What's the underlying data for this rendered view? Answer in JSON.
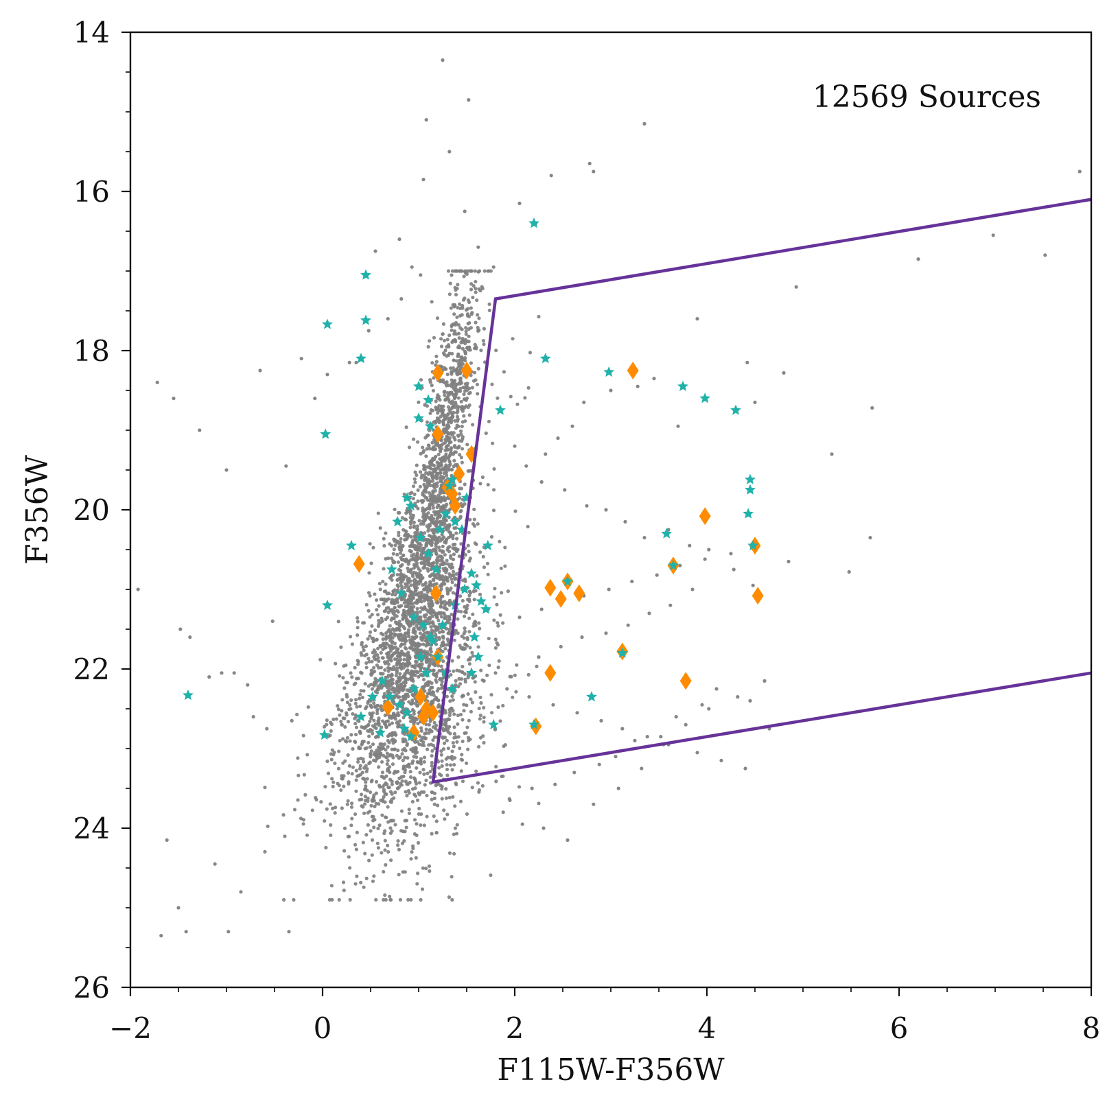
{
  "chart_data": {
    "type": "scatter",
    "title": "",
    "xlabel": "F115W-F356W",
    "ylabel": "F356W",
    "xlim": [
      -2,
      8
    ],
    "ylim": [
      26,
      14
    ],
    "y_inverted": true,
    "grid": false,
    "xticks": [
      -2,
      0,
      2,
      4,
      6,
      8
    ],
    "xtick_labels": [
      "−2",
      "0",
      "2",
      "4",
      "6",
      "8"
    ],
    "yticks": [
      14,
      16,
      18,
      20,
      22,
      24,
      26
    ],
    "ytick_labels": [
      "14",
      "16",
      "18",
      "20",
      "22",
      "24",
      "26"
    ],
    "annotation": {
      "text": "12569 Sources",
      "position": "top-right"
    },
    "colors": {
      "background_sources": "#808080",
      "star_sources": "#20b2aa",
      "diamond_sources": "#ff8c00",
      "selection_box": "#663399"
    },
    "series": [
      {
        "name": "background-sources",
        "marker": "dot",
        "color": "#808080",
        "generated_cloud": {
          "count": 3800,
          "description": "dense main branch plus broad cloud; plotted from sampled locus",
          "locus": [
            [
              0.6,
              23.5
            ],
            [
              0.75,
              22.5
            ],
            [
              0.9,
              21.5
            ],
            [
              1.05,
              20.5
            ],
            [
              1.2,
              19.5
            ],
            [
              1.35,
              18.5
            ],
            [
              1.5,
              17.6
            ],
            [
              1.6,
              17.0
            ]
          ]
        },
        "x": [
          1.25,
          1.52,
          1.08,
          1.32,
          3.35,
          2.78,
          2.82,
          2.38,
          1.05,
          0.8,
          0.55,
          0.93,
          1.02,
          1.48,
          1.62,
          1.78,
          2.05,
          2.22,
          0.48,
          0.68,
          0.82,
          0.35,
          -0.22,
          -0.65,
          -1.72,
          -1.55,
          -1.92,
          -1.28,
          -1.0,
          -0.38,
          -0.08,
          0.05,
          0.28,
          -0.52,
          -0.78,
          -1.05,
          -1.48,
          -1.38,
          -1.18,
          -0.92,
          -0.72,
          -0.58,
          -0.32,
          -1.62,
          -1.68,
          -1.5,
          -1.42,
          -1.12,
          -0.85,
          -0.35,
          -0.98,
          4.93,
          3.9,
          4.42,
          4.8,
          4.5,
          3.7,
          3.45,
          3.28,
          3.0,
          2.72,
          2.6,
          2.45,
          2.32,
          2.0,
          2.12,
          2.28,
          2.52,
          2.75,
          2.95,
          3.15,
          3.35,
          3.6,
          3.82,
          4.02,
          4.28,
          4.48,
          4.85,
          5.3,
          5.48,
          5.7,
          5.72,
          4.65,
          4.45,
          4.1,
          3.95,
          3.68,
          3.52,
          3.25,
          3.05,
          2.88,
          2.62,
          2.42,
          2.18,
          1.95,
          1.88,
          2.08,
          2.3,
          2.55,
          2.82,
          3.08,
          3.32,
          3.55,
          3.78,
          4.02,
          4.32,
          4.6,
          6.2,
          6.98,
          7.52,
          7.88,
          3.85,
          3.62,
          3.4,
          3.18,
          2.95,
          2.7,
          2.48,
          2.25,
          2.02,
          1.8,
          1.68,
          1.92,
          2.15,
          2.4,
          2.65,
          2.9,
          3.12,
          3.38,
          3.6,
          3.9,
          4.15,
          4.4,
          4.25,
          3.98,
          3.72,
          3.48,
          3.22,
          2.98,
          2.72,
          2.5,
          2.28,
          2.05,
          1.82
        ],
        "y": [
          14.35,
          14.85,
          15.1,
          15.5,
          15.15,
          15.65,
          15.75,
          15.8,
          15.85,
          16.6,
          16.75,
          16.95,
          17.05,
          16.25,
          16.7,
          16.95,
          16.15,
          16.4,
          17.75,
          17.6,
          17.35,
          18.15,
          18.1,
          18.25,
          18.4,
          18.6,
          21.0,
          19.0,
          19.5,
          19.45,
          18.6,
          18.3,
          18.15,
          21.4,
          22.2,
          22.05,
          21.5,
          21.6,
          22.1,
          22.05,
          22.6,
          22.75,
          22.65,
          24.15,
          25.35,
          25.0,
          25.3,
          24.45,
          24.8,
          25.3,
          25.3,
          17.2,
          17.6,
          18.15,
          18.28,
          18.65,
          18.95,
          18.35,
          18.45,
          18.5,
          18.65,
          18.95,
          19.1,
          19.3,
          19.2,
          19.45,
          19.65,
          19.75,
          19.95,
          20.0,
          20.15,
          20.35,
          20.25,
          20.45,
          20.5,
          20.75,
          20.95,
          20.65,
          19.3,
          20.78,
          20.35,
          18.72,
          22.75,
          22.4,
          22.25,
          22.45,
          22.6,
          22.85,
          22.9,
          23.1,
          23.2,
          23.3,
          23.45,
          23.5,
          23.65,
          23.8,
          23.95,
          24.0,
          24.15,
          23.7,
          23.5,
          23.25,
          22.95,
          22.7,
          22.5,
          22.35,
          22.15,
          16.85,
          16.55,
          16.8,
          15.75,
          21.0,
          21.2,
          21.3,
          21.45,
          21.55,
          21.6,
          21.72,
          21.85,
          21.95,
          22.05,
          22.15,
          22.25,
          22.35,
          22.45,
          22.55,
          22.65,
          22.75,
          22.85,
          22.95,
          23.05,
          23.15,
          23.25,
          20.55,
          20.62,
          20.7,
          20.82,
          20.9,
          21.0,
          21.08,
          21.15,
          21.25,
          21.35,
          21.42
        ]
      },
      {
        "name": "star-sources",
        "marker": "star",
        "color": "#20b2aa",
        "x": [
          2.2,
          0.45,
          0.45,
          0.05,
          0.4,
          1.0,
          1.1,
          1.35,
          1.85,
          2.32,
          2.98,
          3.75,
          3.98,
          4.3,
          4.45,
          4.45,
          4.43,
          3.58,
          4.48,
          3.65,
          3.12,
          2.8,
          2.2,
          2.55,
          0.03,
          0.3,
          0.05,
          0.78,
          0.88,
          0.92,
          1.02,
          1.1,
          1.18,
          1.22,
          1.28,
          1.32,
          1.38,
          1.45,
          1.5,
          1.55,
          1.6,
          1.65,
          1.7,
          1.72,
          0.72,
          0.82,
          0.95,
          1.05,
          1.12,
          1.2,
          1.28,
          1.35,
          0.62,
          0.7,
          0.8,
          0.88,
          0.95,
          1.02,
          1.08,
          1.15,
          1.25,
          1.38,
          1.48,
          1.58,
          0.52,
          0.92,
          0.85,
          1.55,
          1.78,
          1.62,
          0.4,
          -1.4,
          0.02,
          0.6,
          1.0,
          1.12
        ],
        "y": [
          16.4,
          17.05,
          17.62,
          17.67,
          18.1,
          18.45,
          18.62,
          19.62,
          18.75,
          18.1,
          18.27,
          18.45,
          18.6,
          18.75,
          19.62,
          19.75,
          20.05,
          20.3,
          20.45,
          20.7,
          21.8,
          22.35,
          22.7,
          20.9,
          19.05,
          20.45,
          21.2,
          20.15,
          19.85,
          19.95,
          20.35,
          20.55,
          20.75,
          20.25,
          20.05,
          19.7,
          20.15,
          20.25,
          19.85,
          20.8,
          20.95,
          21.15,
          21.25,
          20.45,
          20.75,
          21.05,
          21.35,
          21.45,
          21.6,
          21.85,
          22.05,
          22.25,
          22.15,
          22.35,
          22.45,
          22.55,
          22.25,
          21.85,
          22.05,
          21.65,
          21.45,
          21.2,
          21.0,
          21.6,
          22.35,
          22.85,
          22.75,
          22.05,
          22.7,
          21.85,
          22.6,
          22.33,
          22.83,
          22.8,
          18.85,
          18.95
        ]
      },
      {
        "name": "diamond-sources",
        "marker": "diamond",
        "color": "#ff8c00",
        "x": [
          1.2,
          1.5,
          3.23,
          1.2,
          1.55,
          1.42,
          1.38,
          0.38,
          2.37,
          2.55,
          2.67,
          2.48,
          3.98,
          4.5,
          3.65,
          4.53,
          3.12,
          2.37,
          3.78,
          2.22,
          1.18,
          1.2,
          0.68,
          0.95,
          1.02,
          1.08,
          1.15,
          1.35,
          1.3,
          1.05
        ],
        "y": [
          18.28,
          18.25,
          18.25,
          19.05,
          19.3,
          19.55,
          19.95,
          20.68,
          20.98,
          20.9,
          21.05,
          21.12,
          20.08,
          20.45,
          20.7,
          21.08,
          21.78,
          22.05,
          22.15,
          22.72,
          21.05,
          21.85,
          22.48,
          22.8,
          22.35,
          22.5,
          22.55,
          19.8,
          19.72,
          22.6
        ]
      },
      {
        "name": "selection-box",
        "marker": "line",
        "color": "#663399",
        "x": [
          8.0,
          1.8,
          1.15,
          8.0
        ],
        "y": [
          16.1,
          17.35,
          23.42,
          22.05
        ]
      }
    ]
  }
}
